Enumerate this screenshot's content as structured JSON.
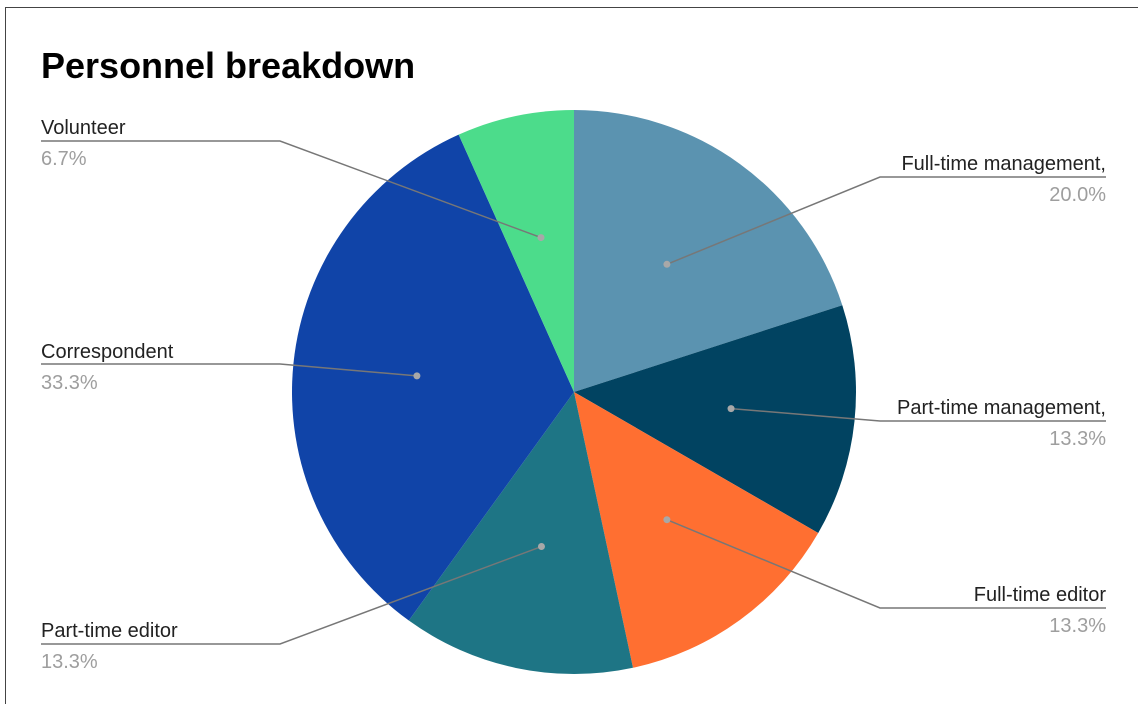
{
  "chart_data": {
    "type": "pie",
    "title": "Personnel breakdown",
    "start_angle_deg": 0,
    "direction": "clockwise",
    "slices": [
      {
        "label": "Full-time management,",
        "percent_label": "20.0%",
        "value": 20.0,
        "color": "#5b93b0"
      },
      {
        "label": "Part-time management,",
        "percent_label": "13.3%",
        "value": 13.3,
        "color": "#014361"
      },
      {
        "label": "Full-time editor",
        "percent_label": "13.3%",
        "value": 13.3,
        "color": "#ff6f31"
      },
      {
        "label": "Part-time editor",
        "percent_label": "13.3%",
        "value": 13.3,
        "color": "#1e7585"
      },
      {
        "label": "Correspondent",
        "percent_label": "33.3%",
        "value": 33.3,
        "color": "#1044a8"
      },
      {
        "label": "Volunteer",
        "percent_label": "6.7%",
        "value": 6.7,
        "color": "#4cdc8b"
      }
    ],
    "legend": "none",
    "label_color": "#222222",
    "percent_color": "#9e9e9e",
    "leader_color": "#777777"
  }
}
